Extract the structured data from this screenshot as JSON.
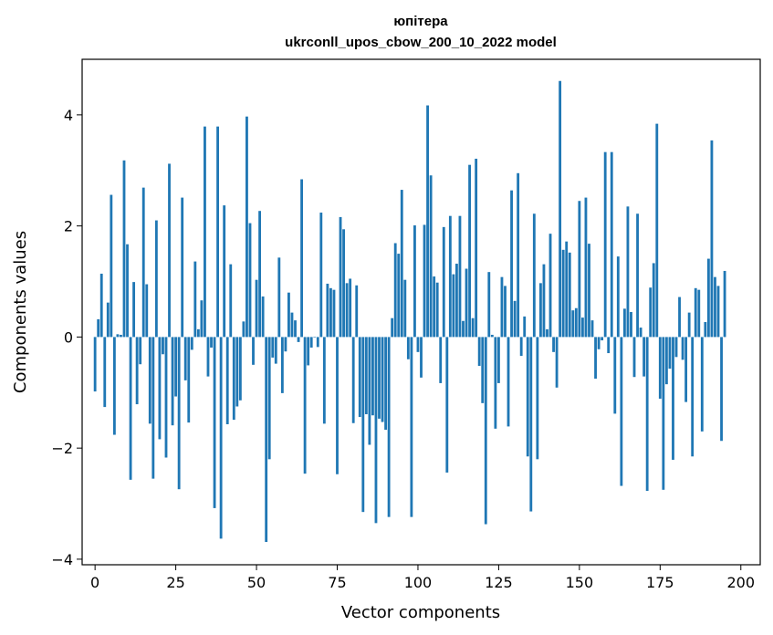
{
  "chart_data": {
    "type": "bar",
    "title": "юпітера",
    "subtitle": "ukrconll_upos_cbow_200_10_2022 model",
    "xlabel": "Vector components",
    "ylabel": "Components values",
    "xlim": [
      -4,
      206
    ],
    "ylim": [
      -4.1,
      5.0
    ],
    "xticks": [
      0,
      25,
      50,
      75,
      100,
      125,
      150,
      175,
      200
    ],
    "yticks": [
      -4,
      -2,
      0,
      2,
      4
    ],
    "ytick_labels": [
      "−4",
      "−2",
      "0",
      "2",
      "4"
    ],
    "grid": false,
    "legend": "none",
    "bar_color": "#1f77b4",
    "values": [
      -0.98,
      0.32,
      1.14,
      -1.26,
      0.62,
      2.56,
      -1.76,
      0.05,
      0.04,
      3.18,
      1.67,
      -2.57,
      0.99,
      -1.21,
      -0.49,
      2.69,
      0.95,
      -1.56,
      -2.55,
      2.1,
      -1.84,
      -0.31,
      -2.17,
      3.12,
      -1.59,
      -1.07,
      -2.74,
      2.51,
      -0.78,
      -1.54,
      -0.23,
      1.36,
      0.14,
      0.66,
      3.79,
      -0.71,
      -0.19,
      -3.08,
      3.79,
      -3.63,
      2.37,
      -1.57,
      1.31,
      -1.49,
      -1.25,
      -1.14,
      0.28,
      3.97,
      2.05,
      -0.5,
      1.03,
      2.27,
      0.73,
      -3.69,
      -2.2,
      -0.37,
      -0.48,
      1.43,
      -1.01,
      -0.26,
      0.8,
      0.44,
      0.3,
      -0.09,
      2.84,
      -2.46,
      -0.51,
      -0.19,
      0.0,
      -0.18,
      2.24,
      -1.56,
      0.96,
      0.88,
      0.85,
      -2.47,
      2.16,
      1.94,
      0.97,
      1.05,
      -1.55,
      0.93,
      -1.44,
      -3.15,
      -1.39,
      -1.94,
      -1.41,
      -3.35,
      -1.47,
      -1.53,
      -1.67,
      -3.24,
      0.34,
      1.69,
      1.5,
      2.65,
      1.03,
      -0.4,
      -3.24,
      2.01,
      -0.27,
      -0.73,
      2.02,
      4.17,
      2.91,
      1.09,
      0.98,
      -0.83,
      1.98,
      -2.44,
      2.18,
      1.13,
      1.32,
      2.18,
      0.29,
      1.23,
      3.1,
      0.34,
      3.21,
      -0.52,
      -1.19,
      -3.37,
      1.17,
      0.04,
      -1.65,
      -0.83,
      1.08,
      0.92,
      -1.61,
      2.64,
      0.65,
      2.95,
      -0.34,
      0.37,
      -2.15,
      -3.14,
      2.22,
      -2.2,
      0.97,
      1.31,
      0.14,
      1.86,
      -0.27,
      -0.91,
      4.61,
      1.57,
      1.72,
      1.52,
      0.48,
      0.52,
      2.45,
      0.35,
      2.51,
      1.68,
      0.3,
      -0.75,
      -0.22,
      -0.06,
      3.33,
      -0.29,
      3.33,
      -1.38,
      1.45,
      -2.68,
      0.51,
      2.35,
      0.45,
      -0.72,
      2.22,
      0.17,
      -0.71,
      -2.77,
      0.89,
      1.33,
      3.84,
      -1.11,
      -2.75,
      -0.85,
      -0.57,
      -2.21,
      -0.36,
      0.72,
      -0.41,
      -1.17,
      0.44,
      -2.15,
      0.88,
      0.85,
      -1.7,
      0.27,
      1.41,
      3.54,
      1.08,
      0.92,
      -1.87,
      1.19
    ]
  }
}
